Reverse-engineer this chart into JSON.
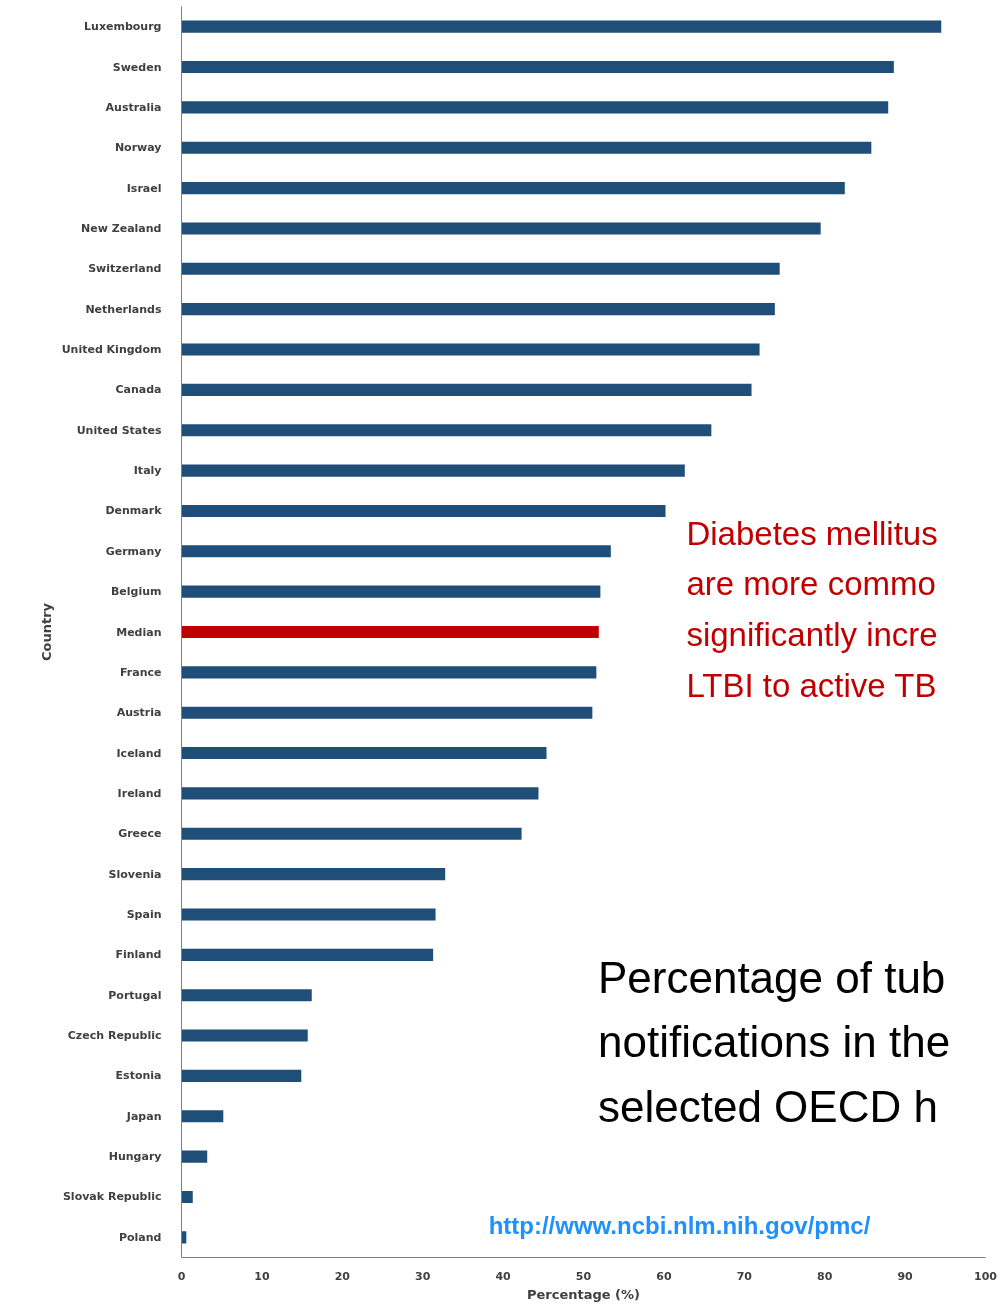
{
  "chart_data": {
    "type": "bar",
    "orientation": "horizontal",
    "xlabel": "Percentage (%)",
    "ylabel": "Country",
    "categories": [
      "Luxembourg",
      "Sweden",
      "Australia",
      "Norway",
      "Israel",
      "New Zealand",
      "Switzerland",
      "Netherlands",
      "United Kingdom",
      "Canada",
      "United States",
      "Italy",
      "Denmark",
      "Germany",
      "Belgium",
      "Median",
      "France",
      "Austria",
      "Iceland",
      "Ireland",
      "Greece",
      "Slovenia",
      "Spain",
      "Finland",
      "Portugal",
      "Czech Republic",
      "Estonia",
      "Japan",
      "Hungary",
      "Slovak Republic",
      "Poland"
    ],
    "values": [
      94.5,
      88.6,
      87.9,
      85.8,
      82.5,
      79.5,
      74.4,
      73.8,
      71.9,
      70.9,
      65.9,
      62.6,
      60.2,
      53.4,
      52.1,
      51.9,
      51.6,
      51.1,
      45.4,
      44.4,
      42.3,
      32.8,
      31.6,
      31.3,
      16.2,
      15.7,
      14.9,
      5.2,
      3.2,
      1.4,
      0.6
    ],
    "colors": [
      "#1f4e79",
      "#1f4e79",
      "#1f4e79",
      "#1f4e79",
      "#1f4e79",
      "#1f4e79",
      "#1f4e79",
      "#1f4e79",
      "#1f4e79",
      "#1f4e79",
      "#1f4e79",
      "#1f4e79",
      "#1f4e79",
      "#1f4e79",
      "#1f4e79",
      "#c00000",
      "#1f4e79",
      "#1f4e79",
      "#1f4e79",
      "#1f4e79",
      "#1f4e79",
      "#1f4e79",
      "#1f4e79",
      "#1f4e79",
      "#1f4e79",
      "#1f4e79",
      "#1f4e79",
      "#1f4e79",
      "#1f4e79",
      "#1f4e79",
      "#1f4e79"
    ],
    "xlim": [
      0,
      100
    ],
    "xticks": [
      0,
      10,
      20,
      30,
      40,
      50,
      60,
      70,
      80,
      90,
      100
    ],
    "grid": false,
    "annotations": [
      "Diabetes mellitus\nare more commo\nsignificantly incre\nLTBI to active TB",
      "Percentage of tub\nnotifications in the\nselected OECD h",
      "http://www.ncbi.nlm.nih.gov/pmc/"
    ]
  }
}
